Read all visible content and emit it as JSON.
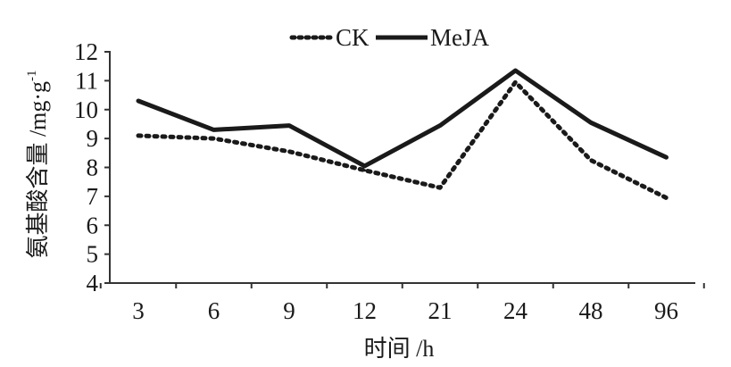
{
  "chart_data": {
    "type": "line",
    "title": "",
    "xlabel": "时间 /h",
    "ylabel": "氨基酸含量 /mg·g",
    "ylabel_superscript": "-1",
    "categories": [
      "3",
      "6",
      "9",
      "12",
      "21",
      "24",
      "48",
      "96"
    ],
    "ylim": [
      4,
      12
    ],
    "yticks": [
      "4",
      "5",
      "6",
      "7",
      "8",
      "9",
      "10",
      "11",
      "12"
    ],
    "grid": false,
    "legend_position": "top-center",
    "series": [
      {
        "name": "CK",
        "style": "dotted",
        "color": "#1a1a1a",
        "values": [
          9.1,
          9.0,
          8.55,
          7.9,
          7.3,
          10.95,
          8.25,
          6.95
        ]
      },
      {
        "name": "MeJA",
        "style": "solid",
        "color": "#1a1a1a",
        "values": [
          10.3,
          9.3,
          9.45,
          8.05,
          9.45,
          11.35,
          9.55,
          8.35
        ]
      }
    ]
  }
}
